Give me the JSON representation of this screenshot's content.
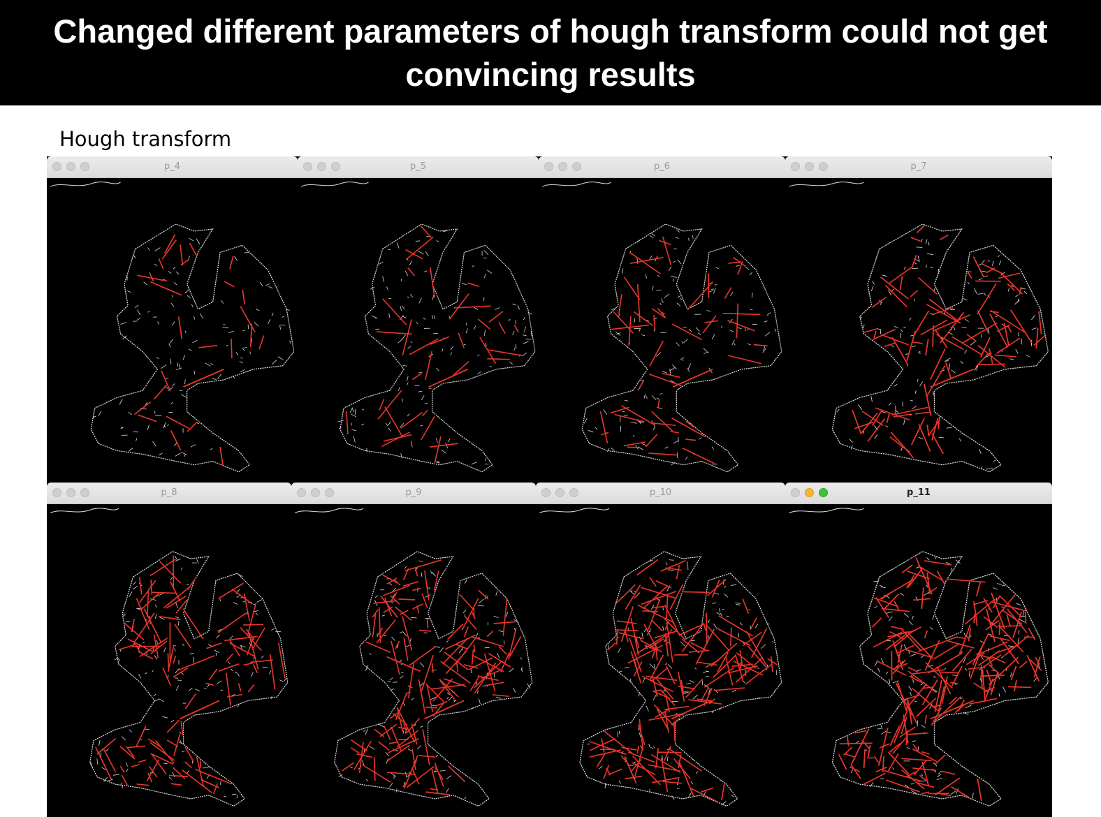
{
  "slide": {
    "title": "Changed different parameters of hough transform could not get convincing results",
    "section_label": "Hough transform"
  },
  "windows": [
    {
      "title": "p_4",
      "red_density": 0.08
    },
    {
      "title": "p_5",
      "red_density": 0.14
    },
    {
      "title": "p_6",
      "red_density": 0.25
    },
    {
      "title": "p_7",
      "red_density": 0.4
    },
    {
      "title": "p_8",
      "red_density": 0.55
    },
    {
      "title": "p_9",
      "red_density": 0.7
    },
    {
      "title": "p_10",
      "red_density": 0.85
    },
    {
      "title": "p_11",
      "red_density": 1.0
    }
  ],
  "colors": {
    "line": "#e8352a",
    "edge": "#d8d8d8",
    "background": "#000000"
  }
}
